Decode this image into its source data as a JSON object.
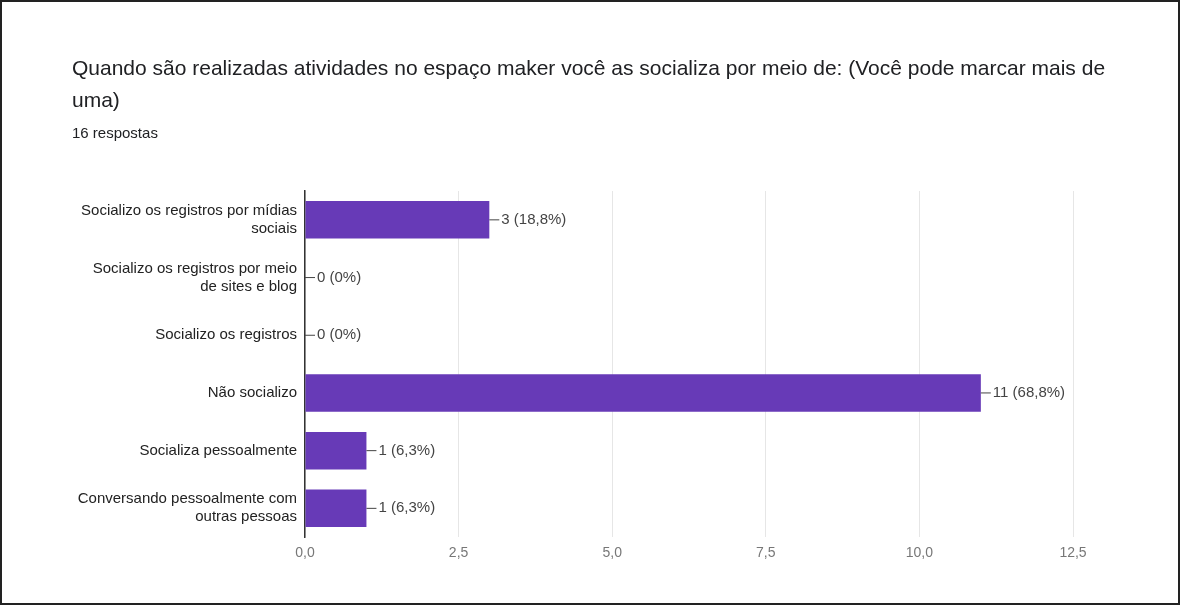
{
  "chart_data": {
    "type": "bar",
    "orientation": "horizontal",
    "title": "Quando são realizadas atividades no espaço maker você as socializa por meio de:   (Você pode marcar mais de uma)",
    "subtitle": "16 respostas",
    "categories": [
      "Socializo os registros por mídias sociais",
      "Socializo os registros por meio de sites e blog",
      "Socializo os registros",
      "Não socializo",
      "Socializa pessoalmente",
      "Conversando pessoalmente com outras pessoas"
    ],
    "values": [
      3,
      0,
      0,
      11,
      1,
      1
    ],
    "value_labels": [
      "3 (18,8%)",
      "0 (0%)",
      "0 (0%)",
      "11 (68,8%)",
      "1 (6,3%)",
      "1 (6,3%)"
    ],
    "color": "#673ab7",
    "xlim": [
      0,
      12.5
    ],
    "xticks": [
      {
        "value": 0,
        "label": "0,0"
      },
      {
        "value": 2.5,
        "label": "2,5"
      },
      {
        "value": 5,
        "label": "5,0"
      },
      {
        "value": 7.5,
        "label": "7,5"
      },
      {
        "value": 10,
        "label": "10,0"
      },
      {
        "value": 12.5,
        "label": "12,5"
      }
    ],
    "grid": "x"
  }
}
